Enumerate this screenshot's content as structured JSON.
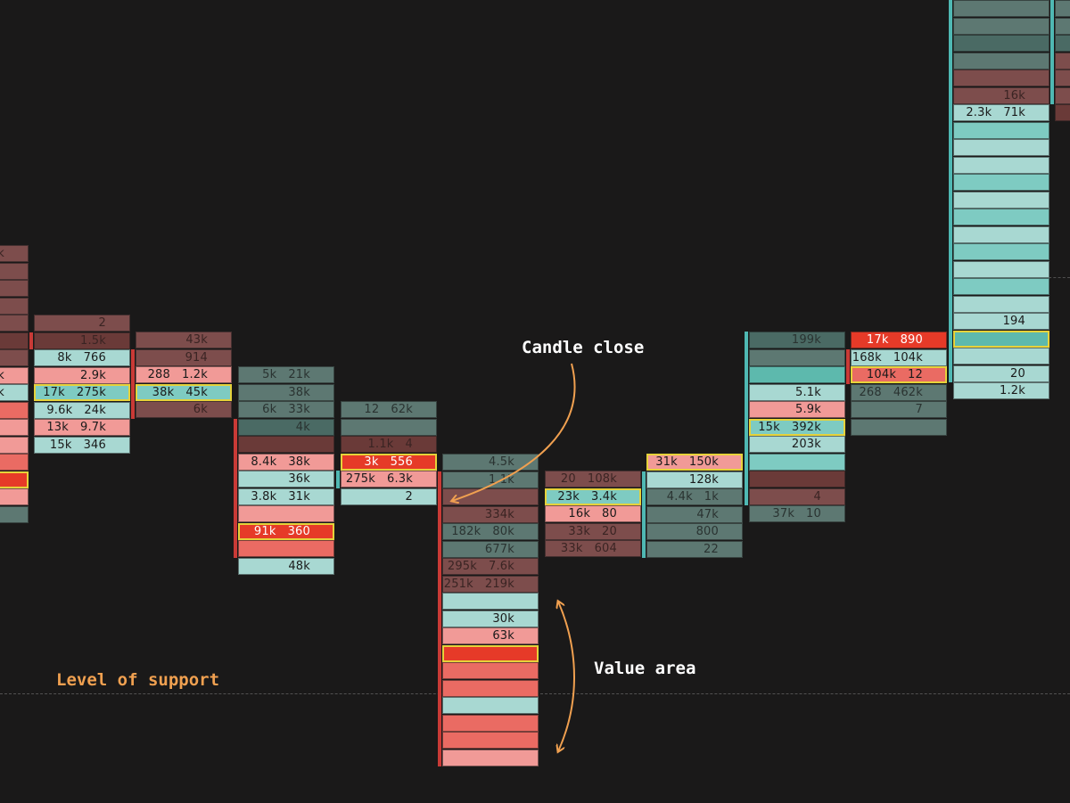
{
  "annotations": {
    "candle_close": "Candle close",
    "value_area": "Value area",
    "support": "Level of support"
  },
  "colors": {
    "background": "#1a1919",
    "annotation_white": "#ffffff",
    "annotation_orange": "#f0a050",
    "poc_outline": "#e6d23a",
    "bar_red": "#c93a36",
    "bar_teal": "#4fb8b3"
  },
  "styles": {
    "gl": {
      "bg": "#a8d8d2",
      "fg": "#1a1a1a"
    },
    "gm": {
      "bg": "#7ecbc2",
      "fg": "#1a1a1a"
    },
    "gh": {
      "bg": "#5db9ad",
      "fg": "#1a1a1a"
    },
    "gd": {
      "bg": "#5d7872",
      "fg": "#2a3331"
    },
    "gd2": {
      "bg": "#4a6a64",
      "fg": "#2a3331"
    },
    "rl": {
      "bg": "#f19a97",
      "fg": "#1a1a1a"
    },
    "rm": {
      "bg": "#ea6b63",
      "fg": "#1a1a1a"
    },
    "rh": {
      "bg": "#e63a28",
      "fg": "#ffffff"
    },
    "rd": {
      "bg": "#7d4d4c",
      "fg": "#3a2423"
    },
    "rd2": {
      "bg": "#6a3a38",
      "fg": "#3a2423"
    }
  },
  "chart_data": {
    "type": "footprint",
    "columns": [
      {
        "id": "c0",
        "cells": [
          {
            "s": "rd",
            "t": "k"
          },
          {
            "s": "rd",
            "t": ""
          },
          {
            "s": "rd",
            "t": ""
          },
          {
            "s": "rd",
            "t": ""
          },
          {
            "s": "rd",
            "t": ""
          },
          {
            "s": "rd2",
            "t": ""
          },
          {
            "s": "rd",
            "t": ""
          },
          {
            "s": "rl",
            "t": "k"
          },
          {
            "s": "gl",
            "t": "k"
          },
          {
            "s": "rm",
            "t": ""
          },
          {
            "s": "rl",
            "t": ""
          },
          {
            "s": "rl",
            "t": ""
          },
          {
            "s": "rm",
            "t": ""
          },
          {
            "s": "rh",
            "t": "",
            "poc": true
          },
          {
            "s": "rl",
            "t": ""
          },
          {
            "s": "gd",
            "t": ""
          }
        ]
      },
      {
        "id": "c1",
        "cells": [
          {
            "s": "rd",
            "t": "2"
          },
          {
            "s": "rd2",
            "t": "1.5k"
          },
          {
            "s": "gl",
            "t": "8k   766"
          },
          {
            "s": "rl",
            "t": "2.9k"
          },
          {
            "s": "gm",
            "t": "17k   275k",
            "poc": true
          },
          {
            "s": "gl",
            "t": "9.6k   24k"
          },
          {
            "s": "rl",
            "t": "13k   9.7k"
          },
          {
            "s": "gl",
            "t": "15k   346"
          }
        ]
      },
      {
        "id": "c2",
        "cells": [
          {
            "s": "rd",
            "t": "43k"
          },
          {
            "s": "rd",
            "t": "914"
          },
          {
            "s": "rl",
            "t": "288   1.2k"
          },
          {
            "s": "gm",
            "t": "38k   45k",
            "poc": true
          },
          {
            "s": "rd",
            "t": "6k"
          }
        ]
      },
      {
        "id": "c3",
        "cells": [
          {
            "s": "gd",
            "t": "5k   21k"
          },
          {
            "s": "gd",
            "t": "38k"
          },
          {
            "s": "gd",
            "t": "6k   33k"
          },
          {
            "s": "gd2",
            "t": "4k"
          },
          {
            "s": "rd2",
            "t": ""
          },
          {
            "s": "rl",
            "t": "8.4k   38k"
          },
          {
            "s": "gl",
            "t": "36k"
          },
          {
            "s": "gl",
            "t": "3.8k   31k"
          },
          {
            "s": "rl",
            "t": ""
          },
          {
            "s": "rh",
            "t": "91k   360",
            "poc": true
          },
          {
            "s": "rm",
            "t": ""
          },
          {
            "s": "gl",
            "t": "48k"
          }
        ]
      },
      {
        "id": "c4",
        "cells": [
          {
            "s": "gd",
            "t": "12   62k"
          },
          {
            "s": "gd",
            "t": ""
          },
          {
            "s": "rd2",
            "t": "1.1k   4"
          },
          {
            "s": "rh",
            "t": "3k   556",
            "poc": true
          },
          {
            "s": "rl",
            "t": "275k   6.3k"
          },
          {
            "s": "gl",
            "t": "2"
          }
        ]
      },
      {
        "id": "c5",
        "cells": [
          {
            "s": "gd",
            "t": "4.5k"
          },
          {
            "s": "gd",
            "t": "1.1k"
          },
          {
            "s": "rd",
            "t": ""
          },
          {
            "s": "rd",
            "t": "334k"
          },
          {
            "s": "gd",
            "t": "182k   80k"
          },
          {
            "s": "gd",
            "t": "677k"
          },
          {
            "s": "rd",
            "t": "295k   7.6k"
          },
          {
            "s": "rd",
            "t": "251k   219k"
          },
          {
            "s": "gl",
            "t": ""
          },
          {
            "s": "gl",
            "t": "30k"
          },
          {
            "s": "rl",
            "t": "63k"
          },
          {
            "s": "rh",
            "t": "",
            "poc": true
          },
          {
            "s": "rm",
            "t": ""
          },
          {
            "s": "rm",
            "t": ""
          },
          {
            "s": "gl",
            "t": ""
          },
          {
            "s": "rm",
            "t": ""
          },
          {
            "s": "rm",
            "t": ""
          },
          {
            "s": "rl",
            "t": ""
          }
        ]
      },
      {
        "id": "c6",
        "cells": [
          {
            "s": "rd",
            "t": "20   108k"
          },
          {
            "s": "gm",
            "t": "23k   3.4k",
            "poc": true
          },
          {
            "s": "rl",
            "t": "16k   80"
          },
          {
            "s": "rd",
            "t": "33k   20"
          },
          {
            "s": "rd",
            "t": "33k   604"
          }
        ]
      },
      {
        "id": "c7",
        "cells": [
          {
            "s": "rl",
            "t": "31k   150k",
            "poc": true
          },
          {
            "s": "gl",
            "t": "128k"
          },
          {
            "s": "gd",
            "t": "4.4k   1k"
          },
          {
            "s": "gd",
            "t": "47k"
          },
          {
            "s": "gd",
            "t": "800"
          },
          {
            "s": "gd",
            "t": "22"
          }
        ]
      },
      {
        "id": "c8",
        "cells": [
          {
            "s": "gd2",
            "t": "199k"
          },
          {
            "s": "gd",
            "t": ""
          },
          {
            "s": "gh",
            "t": ""
          },
          {
            "s": "gl",
            "t": "5.1k"
          },
          {
            "s": "rl",
            "t": "5.9k"
          },
          {
            "s": "gm",
            "t": "15k   392k",
            "poc": true
          },
          {
            "s": "gl",
            "t": "203k"
          },
          {
            "s": "gm",
            "t": ""
          },
          {
            "s": "rd2",
            "t": ""
          },
          {
            "s": "rd",
            "t": "4"
          },
          {
            "s": "gd",
            "t": "37k   10"
          }
        ]
      },
      {
        "id": "c9",
        "cells": [
          {
            "s": "rh",
            "t": "17k   890"
          },
          {
            "s": "gl",
            "t": "168k   104k"
          },
          {
            "s": "rm",
            "t": "104k   12",
            "poc": true
          },
          {
            "s": "gd",
            "t": "268   462k"
          },
          {
            "s": "gd",
            "t": "7"
          },
          {
            "s": "gd",
            "t": ""
          }
        ]
      },
      {
        "id": "c10",
        "cells": [
          {
            "s": "gd",
            "t": ""
          },
          {
            "s": "gd",
            "t": ""
          },
          {
            "s": "gd2",
            "t": ""
          },
          {
            "s": "gd",
            "t": ""
          },
          {
            "s": "rd",
            "t": ""
          },
          {
            "s": "rd",
            "t": "16k"
          },
          {
            "s": "gl",
            "t": "2.3k   71k"
          },
          {
            "s": "gm",
            "t": ""
          },
          {
            "s": "gl",
            "t": ""
          },
          {
            "s": "gl",
            "t": ""
          },
          {
            "s": "gm",
            "t": ""
          },
          {
            "s": "gl",
            "t": ""
          },
          {
            "s": "gm",
            "t": ""
          },
          {
            "s": "gl",
            "t": ""
          },
          {
            "s": "gm",
            "t": ""
          },
          {
            "s": "gl",
            "t": ""
          },
          {
            "s": "gm",
            "t": ""
          },
          {
            "s": "gl",
            "t": ""
          },
          {
            "s": "gl",
            "t": "194"
          },
          {
            "s": "gh",
            "t": "",
            "poc": true
          },
          {
            "s": "gl",
            "t": ""
          },
          {
            "s": "gl",
            "t": "20"
          },
          {
            "s": "gl",
            "t": "1.2k"
          }
        ]
      },
      {
        "id": "c11",
        "cells": [
          {
            "s": "gd",
            "t": ""
          },
          {
            "s": "gd",
            "t": ""
          },
          {
            "s": "gd2",
            "t": ""
          },
          {
            "s": "rd",
            "t": ""
          },
          {
            "s": "rd",
            "t": ""
          },
          {
            "s": "rd",
            "t": ""
          },
          {
            "s": "rd2",
            "t": ""
          }
        ]
      }
    ]
  }
}
